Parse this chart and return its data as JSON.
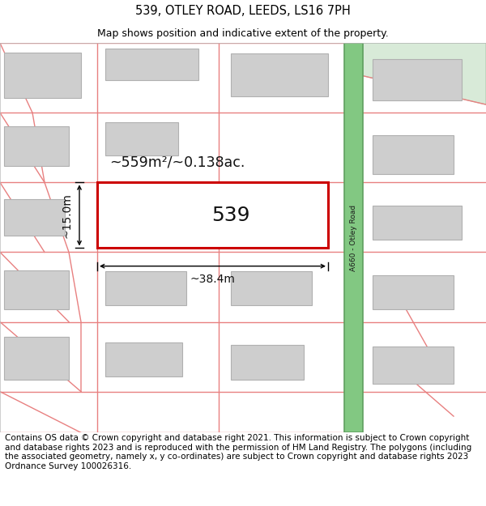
{
  "title": "539, OTLEY ROAD, LEEDS, LS16 7PH",
  "subtitle": "Map shows position and indicative extent of the property.",
  "footer": "Contains OS data © Crown copyright and database right 2021. This information is subject to Crown copyright and database rights 2023 and is reproduced with the permission of HM Land Registry. The polygons (including the associated geometry, namely x, y co-ordinates) are subject to Crown copyright and database rights 2023 Ordnance Survey 100026316.",
  "road_color": "#82c882",
  "road_border_color": "#60a060",
  "road_label": "A660 - Otley Road",
  "plot_outline_color": "#cc0000",
  "plot_label": "539",
  "area_label": "~559m²/~0.138ac.",
  "width_label": "~38.4m",
  "height_label": "~15.0m",
  "building_fill": "#cecece",
  "building_outline": "#b0b0b0",
  "parcel_line_color": "#e88080",
  "map_bg": "#ffffff",
  "title_fontsize": 10.5,
  "subtitle_fontsize": 9,
  "footer_fontsize": 7.5,
  "green_area_color": "#d8ead8",
  "green_area_border": "#b0c8b0"
}
